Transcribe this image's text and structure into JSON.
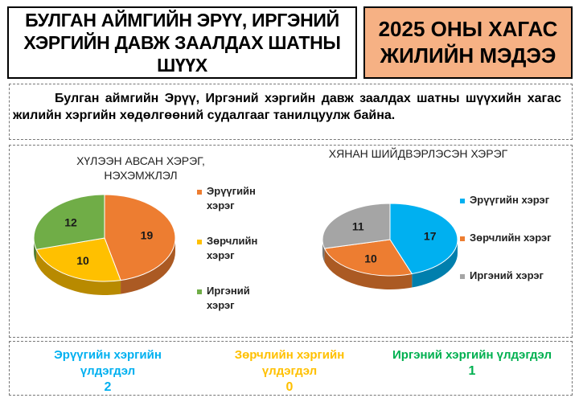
{
  "header": {
    "title": "БУЛГАН АЙМГИЙН ЭРҮҮ, ИРГЭНИЙ ХЭРГИЙН ДАВЖ ЗААЛДАХ ШАТНЫ ШҮҮХ",
    "report_title": "2025 ОНЫ ХАГАС ЖИЛИЙН МЭДЭЭ"
  },
  "intro": "Булган аймгийн Эрүү, Иргэний хэргийн давж заалдах шатны шүүхийн хагас жилийн хэргийн хөдөлгөөний судалгааг танилцуулж байна.",
  "colors": {
    "header_right_bg": "#f6b184",
    "orange": "#ed7d31",
    "yellow": "#ffc000",
    "green": "#70ad47",
    "blue": "#00b0f0",
    "gray": "#a5a5a5",
    "stat_criminal": "#00b0f0",
    "stat_violation": "#ffc000",
    "stat_civil": "#00b050"
  },
  "chart_data": [
    {
      "type": "pie",
      "style": "3d",
      "title": "ХҮЛЭЭН АВСАН ХЭРЭГ, НЭХЭМЖЛЭЛ",
      "legend_position": "right",
      "slices": [
        {
          "label": "Эрүүгийн хэрэг",
          "value": 19,
          "color": "#ed7d31"
        },
        {
          "label": "Зөрчлийн хэрэг",
          "value": 10,
          "color": "#ffc000"
        },
        {
          "label": "Иргэний хэрэг",
          "value": 12,
          "color": "#70ad47"
        }
      ]
    },
    {
      "type": "pie",
      "style": "3d",
      "title": "ХЯНАН ШИЙДВЭРЛЭСЭН ХЭРЭГ",
      "legend_position": "right",
      "slices": [
        {
          "label": "Эрүүгийн хэрэг",
          "value": 17,
          "color": "#00b0f0"
        },
        {
          "label": "Зөрчлийн хэрэг",
          "value": 10,
          "color": "#ed7d31"
        },
        {
          "label": "Иргэний хэрэг",
          "value": 11,
          "color": "#a5a5a5"
        }
      ]
    }
  ],
  "pending": [
    {
      "label": "Эрүүгийн хэргийн үлдэгдэл",
      "value": "2"
    },
    {
      "label": "Зөрчлийн хэргийн үлдэгдэл",
      "value": "0"
    },
    {
      "label": "Иргэний хэргийн үлдэгдэл",
      "value": "1"
    }
  ]
}
